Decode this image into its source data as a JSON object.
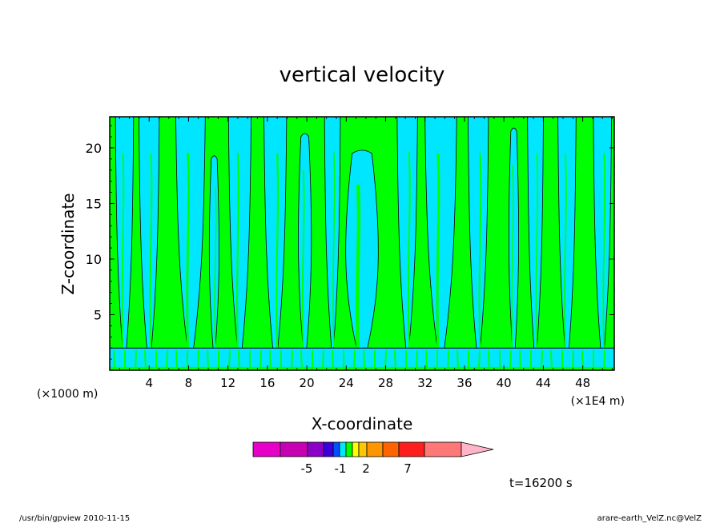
{
  "chart_data": {
    "type": "contour",
    "title": "vertical velocity",
    "xlabel": "X-coordinate",
    "ylabel": "Z-coordinate",
    "x_unit_left": "(×1000 m)",
    "x_unit_right": "(×1E4 m)",
    "xlim": [
      0,
      51.2
    ],
    "ylim": [
      0,
      22.8
    ],
    "x_ticks": [
      4,
      8,
      12,
      16,
      20,
      24,
      28,
      32,
      36,
      40,
      44,
      48
    ],
    "y_ticks": [
      5,
      10,
      15,
      20
    ],
    "fill_colors": {
      "positive_small": "#00ff00",
      "negative_small": "#00e6ff"
    },
    "background_fill": "#00ff00",
    "negative_plumes": [
      {
        "x": 1.5,
        "w": 1.6,
        "y0": 0.9,
        "y1": 22.8
      },
      {
        "x": 4.0,
        "w": 1.8,
        "y0": 0.8,
        "y1": 22.8
      },
      {
        "x": 8.2,
        "w": 2.6,
        "y0": 1.0,
        "y1": 22.8
      },
      {
        "x": 10.6,
        "w": 1.2,
        "y0": 1.5,
        "y1": 19.0
      },
      {
        "x": 13.2,
        "w": 2.0,
        "y0": 1.0,
        "y1": 22.8
      },
      {
        "x": 16.8,
        "w": 2.0,
        "y0": 0.8,
        "y1": 22.8
      },
      {
        "x": 19.8,
        "w": 1.6,
        "y0": 1.2,
        "y1": 21.0
      },
      {
        "x": 22.6,
        "w": 1.4,
        "y0": 1.8,
        "y1": 22.8
      },
      {
        "x": 25.6,
        "w": 4.0,
        "y0": 0.8,
        "y1": 19.5
      },
      {
        "x": 30.2,
        "w": 1.8,
        "y0": 1.6,
        "y1": 22.8
      },
      {
        "x": 33.6,
        "w": 2.8,
        "y0": 0.8,
        "y1": 22.8
      },
      {
        "x": 37.4,
        "w": 1.8,
        "y0": 1.2,
        "y1": 22.8
      },
      {
        "x": 41.0,
        "w": 1.2,
        "y0": 1.0,
        "y1": 21.5
      },
      {
        "x": 43.2,
        "w": 1.4,
        "y0": 1.2,
        "y1": 22.8
      },
      {
        "x": 46.4,
        "w": 1.6,
        "y0": 0.8,
        "y1": 22.8
      },
      {
        "x": 50.0,
        "w": 1.6,
        "y0": 1.0,
        "y1": 22.8
      }
    ],
    "near_surface_negative_band": {
      "y0": 0.3,
      "y1": 2.0
    }
  },
  "colorbar": {
    "labels": [
      "-5",
      "-1",
      "2",
      "7"
    ],
    "colors": [
      "#e600c8",
      "#c800b4",
      "#8c00c8",
      "#3c00dc",
      "#0050ff",
      "#00e6ff",
      "#00ff00",
      "#ffff00",
      "#ffc800",
      "#ff9600",
      "#ff6400",
      "#ff1e1e",
      "#ff7878",
      "#ffb4c8"
    ]
  },
  "time_label": "t=16200 s",
  "footer": {
    "left": "/usr/bin/gpview   2010-11-15",
    "right": "arare-earth_VelZ.nc@VelZ"
  }
}
